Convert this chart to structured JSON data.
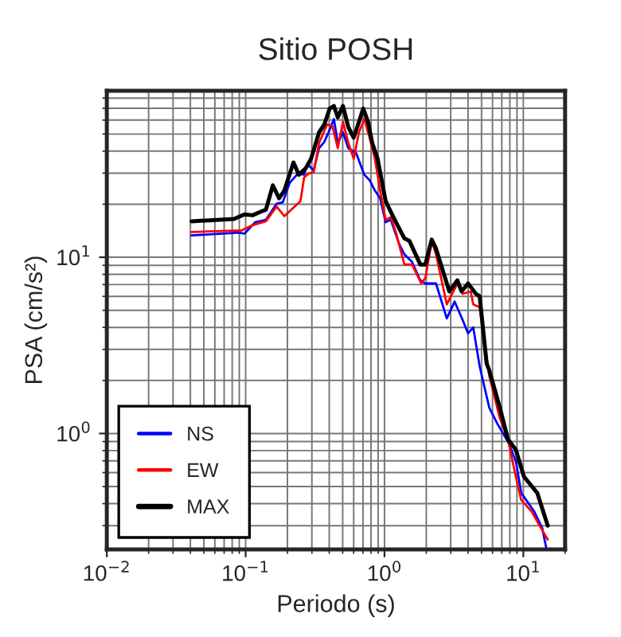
{
  "chart_data": {
    "type": "line",
    "title": "Sitio POSH",
    "xlabel": "Periodo (s)",
    "ylabel": "PSA (cm/s²)",
    "log": "xy",
    "grid": true,
    "legend": "bottom left",
    "xlim": [
      0.01,
      20
    ],
    "ylim": [
      0.22,
      88
    ],
    "xticks": [
      {
        "value": 0.01,
        "label": "10$^{−2}$"
      },
      {
        "value": 0.1,
        "label": "10$^{−1}$"
      },
      {
        "value": 1,
        "label": "10$^{0}$"
      },
      {
        "value": 10,
        "label": "10$^{1}$"
      }
    ],
    "yticks": [
      {
        "value": 1,
        "label": "10$^{0}$"
      },
      {
        "value": 10,
        "label": "10$^{1}$"
      }
    ],
    "series": [
      {
        "name": "NS",
        "color": "#0000ff",
        "x": [
          0.0407,
          0.0899,
          0.098,
          0.117,
          0.14,
          0.167,
          0.185,
          0.208,
          0.238,
          0.264,
          0.278,
          0.309,
          0.338,
          0.369,
          0.403,
          0.432,
          0.461,
          0.502,
          0.549,
          0.627,
          0.715,
          0.781,
          0.853,
          0.931,
          1.02,
          1.11,
          1.27,
          1.39,
          1.58,
          1.81,
          1.97,
          2.35,
          2.81,
          3.2,
          3.66,
          4.0,
          4.36,
          4.85,
          5.69,
          6.49,
          7.74,
          8.83,
          9.66,
          12.0,
          13.7,
          14.7
        ],
        "values": [
          13.3,
          13.8,
          13.6,
          15.8,
          16.3,
          20.1,
          20.5,
          26.5,
          29.8,
          29.4,
          33.8,
          31.1,
          41.6,
          45.2,
          52.9,
          60.8,
          44.5,
          51.1,
          41.6,
          38.8,
          29.4,
          27.4,
          23.9,
          21.6,
          15.8,
          16.3,
          12.0,
          10.4,
          9.4,
          7.4,
          7.1,
          7.1,
          4.5,
          5.6,
          4.4,
          3.7,
          4.0,
          2.4,
          1.4,
          1.14,
          0.9,
          0.7,
          0.46,
          0.36,
          0.29,
          0.22
        ]
      },
      {
        "name": "EW",
        "color": "#ff0000",
        "x": [
          0.0407,
          0.094,
          0.112,
          0.14,
          0.167,
          0.19,
          0.248,
          0.264,
          0.283,
          0.309,
          0.338,
          0.386,
          0.421,
          0.461,
          0.502,
          0.549,
          0.6,
          0.655,
          0.715,
          0.781,
          0.853,
          0.931,
          1.02,
          1.11,
          1.21,
          1.39,
          1.58,
          1.84,
          1.97,
          2.19,
          2.35,
          2.81,
          3.35,
          3.66,
          4.18,
          4.36,
          4.85,
          5.69,
          6.78,
          7.74,
          8.83,
          9.66,
          11.5,
          13.1,
          15.0
        ],
        "values": [
          13.9,
          14.2,
          15.2,
          16.0,
          19.4,
          17.1,
          20.8,
          28.4,
          29.8,
          30.4,
          44.5,
          56.7,
          55.6,
          41.6,
          58.7,
          44.5,
          36.2,
          51.1,
          60.8,
          47.7,
          36.2,
          23.9,
          16.3,
          16.9,
          13.8,
          9.1,
          9.1,
          7.1,
          7.6,
          12.4,
          10.4,
          5.4,
          7.1,
          6.2,
          6.4,
          5.4,
          5.2,
          2.12,
          1.22,
          0.93,
          0.57,
          0.42,
          0.36,
          0.3,
          0.25
        ]
      },
      {
        "name": "MAX",
        "color": "#000000",
        "x": [
          0.0407,
          0.0824,
          0.098,
          0.112,
          0.128,
          0.14,
          0.157,
          0.174,
          0.19,
          0.221,
          0.242,
          0.271,
          0.296,
          0.338,
          0.369,
          0.403,
          0.432,
          0.461,
          0.502,
          0.549,
          0.6,
          0.655,
          0.703,
          0.761,
          0.816,
          0.892,
          1.02,
          1.11,
          1.21,
          1.39,
          1.51,
          1.81,
          1.97,
          2.19,
          2.35,
          2.93,
          3.35,
          3.59,
          4.0,
          4.56,
          4.85,
          5.44,
          5.69,
          6.78,
          7.74,
          8.83,
          10.1,
          12.6,
          15.0
        ],
        "values": [
          16.0,
          16.5,
          17.5,
          17.3,
          18.1,
          18.6,
          25.6,
          21.6,
          23.9,
          34.5,
          29.4,
          32.0,
          36.2,
          51.1,
          56.7,
          69.8,
          72.2,
          62.1,
          72.2,
          54.8,
          47.7,
          58.7,
          69.8,
          58.7,
          44.5,
          36.2,
          20.8,
          18.1,
          15.8,
          12.8,
          12.4,
          9.1,
          9.1,
          12.6,
          11.2,
          6.4,
          7.4,
          6.4,
          7.1,
          6.2,
          6.0,
          2.5,
          2.28,
          1.4,
          0.93,
          0.81,
          0.57,
          0.46,
          0.3
        ]
      }
    ]
  }
}
